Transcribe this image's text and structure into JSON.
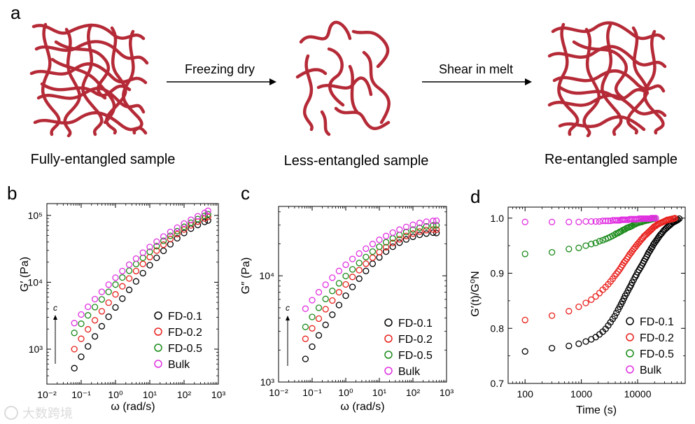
{
  "panel_a": {
    "letter": "a",
    "arrow1_label": "Freezing dry",
    "arrow2_label": "Shear in melt",
    "captions": [
      "Fully-entangled sample",
      "Less-entangled sample",
      "Re-entangled sample"
    ]
  },
  "panels": [
    {
      "letter": "b",
      "ylabel": "G′ (Pa)",
      "xlabel": "ω (rad/s)",
      "c_label": "c"
    },
    {
      "letter": "c",
      "ylabel": "G″ (Pa)",
      "xlabel": "ω (rad/s)",
      "c_label": "c"
    },
    {
      "letter": "d",
      "ylabel": "G′(t)/G⁰N",
      "xlabel": "Time (s)"
    }
  ],
  "watermark": "大数跨境",
  "colors": {
    "FD-0.1": "#000000",
    "FD-0.2": "#e8201c",
    "FD-0.5": "#1a8a1a",
    "Bulk": "#e030e0",
    "chains": "#b52a37"
  },
  "chart_data": [
    {
      "type": "scatter",
      "xscale": "log",
      "yscale": "log",
      "xlim": [
        0.01,
        1000
      ],
      "ylim": [
        300,
        150000
      ],
      "xticks": [
        "10⁻²",
        "10⁻¹",
        "10⁰",
        "10¹",
        "10²",
        "10³"
      ],
      "yticks": [
        "10³",
        "10⁴",
        "10⁵"
      ],
      "legend_position": "bottom-right",
      "x": [
        0.063,
        0.1,
        0.158,
        0.251,
        0.398,
        0.631,
        1.0,
        1.585,
        2.512,
        3.981,
        6.31,
        10.0,
        15.85,
        25.12,
        39.81,
        63.1,
        100,
        158.5,
        251.2,
        398.1,
        500
      ],
      "series": [
        {
          "name": "FD-0.1",
          "values": [
            520,
            770,
            1100,
            1550,
            2200,
            3050,
            4200,
            5700,
            7700,
            10300,
            13700,
            18000,
            23200,
            29500,
            37000,
            45500,
            54500,
            63500,
            72000,
            80000,
            84000
          ]
        },
        {
          "name": "FD-0.2",
          "values": [
            1000,
            1430,
            1980,
            2700,
            3680,
            4950,
            6600,
            8700,
            11400,
            14700,
            18800,
            23800,
            29700,
            36500,
            44200,
            52500,
            61500,
            71000,
            80500,
            90000,
            95000
          ]
        },
        {
          "name": "FD-0.5",
          "values": [
            1750,
            2400,
            3200,
            4250,
            5550,
            7200,
            9250,
            11800,
            14900,
            18700,
            23200,
            28500,
            34700,
            41700,
            49500,
            58000,
            67500,
            77500,
            88000,
            98500,
            104000
          ]
        },
        {
          "name": "Bulk",
          "values": [
            2450,
            3300,
            4300,
            5600,
            7200,
            9200,
            11700,
            14700,
            18300,
            22600,
            27700,
            33700,
            40500,
            48200,
            56500,
            65500,
            75500,
            86000,
            97000,
            109000,
            117000
          ]
        }
      ]
    },
    {
      "type": "scatter",
      "xscale": "log",
      "yscale": "log",
      "xlim": [
        0.01,
        1000
      ],
      "ylim": [
        1000,
        45000
      ],
      "xticks": [
        "10⁻²",
        "10⁻¹",
        "10⁰",
        "10¹",
        "10²",
        "10³"
      ],
      "yticks": [
        "10³",
        "10⁴"
      ],
      "legend_position": "bottom-right",
      "x": [
        0.063,
        0.1,
        0.158,
        0.251,
        0.398,
        0.631,
        1.0,
        1.585,
        2.512,
        3.981,
        6.31,
        10.0,
        15.85,
        25.12,
        39.81,
        63.1,
        100,
        158.5,
        251.2,
        398.1,
        500
      ],
      "series": [
        {
          "name": "FD-0.1",
          "values": [
            1650,
            2150,
            2750,
            3450,
            4300,
            5300,
            6500,
            7850,
            9400,
            11100,
            13000,
            14900,
            16900,
            18800,
            20500,
            22000,
            23300,
            24300,
            25000,
            25500,
            25300
          ]
        },
        {
          "name": "FD-0.2",
          "values": [
            2550,
            3200,
            3950,
            4850,
            5850,
            7000,
            8300,
            9750,
            11300,
            13000,
            14800,
            16700,
            18600,
            20400,
            22100,
            23700,
            25000,
            26100,
            26900,
            27300,
            27200
          ]
        },
        {
          "name": "FD-0.5",
          "values": [
            3300,
            4100,
            5000,
            6050,
            7200,
            8500,
            9950,
            11500,
            13200,
            15000,
            16900,
            18800,
            20700,
            22500,
            24200,
            25800,
            27200,
            28300,
            29200,
            29800,
            29900
          ]
        },
        {
          "name": "Bulk",
          "values": [
            4900,
            5900,
            7000,
            8250,
            9600,
            11100,
            12700,
            14400,
            16200,
            18000,
            19900,
            21800,
            23700,
            25500,
            27200,
            28800,
            30200,
            31400,
            32300,
            32900,
            33000
          ]
        }
      ]
    },
    {
      "type": "scatter",
      "xscale": "log",
      "yscale": "linear",
      "xlim": [
        50,
        70000
      ],
      "ylim": [
        0.7,
        1.02
      ],
      "xticks": [
        "100",
        "1000",
        "10000"
      ],
      "yticks": [
        "0.7",
        "0.8",
        "0.9",
        "1.0"
      ],
      "legend_position": "bottom-right",
      "series": [
        {
          "name": "FD-0.1",
          "times": [
            100,
            300,
            600,
            900,
            1200,
            1500,
            1800,
            2100,
            2400,
            2700,
            3000,
            3300,
            3600,
            3900,
            4200,
            4500,
            4800,
            5100,
            5400,
            5700,
            6000,
            6400,
            6800,
            7200,
            7600,
            8000,
            8500,
            9000,
            9500,
            10000,
            10600,
            11200,
            11800,
            12400,
            13000,
            13700,
            14400,
            15100,
            15800,
            16600,
            17400,
            18200,
            19100,
            20000,
            21000,
            22000,
            23100,
            24200,
            25400,
            26600,
            28000,
            29500,
            31000,
            32500,
            34000,
            36000,
            38000,
            40000,
            42000,
            44000,
            46000,
            48000,
            50000,
            52000,
            55000
          ],
          "values": [
            0.758,
            0.764,
            0.768,
            0.772,
            0.776,
            0.78,
            0.784,
            0.789,
            0.794,
            0.799,
            0.805,
            0.811,
            0.817,
            0.822,
            0.828,
            0.834,
            0.839,
            0.844,
            0.849,
            0.854,
            0.859,
            0.864,
            0.869,
            0.874,
            0.878,
            0.883,
            0.888,
            0.893,
            0.897,
            0.902,
            0.906,
            0.91,
            0.914,
            0.918,
            0.922,
            0.926,
            0.93,
            0.934,
            0.938,
            0.941,
            0.945,
            0.948,
            0.952,
            0.955,
            0.958,
            0.961,
            0.964,
            0.967,
            0.97,
            0.972,
            0.975,
            0.978,
            0.98,
            0.982,
            0.984,
            0.986,
            0.988,
            0.99,
            0.992,
            0.993,
            0.994,
            0.995,
            0.996,
            0.997,
            0.999
          ]
        },
        {
          "name": "FD-0.2",
          "times": [
            100,
            300,
            600,
            900,
            1200,
            1500,
            1800,
            2100,
            2400,
            2700,
            3000,
            3300,
            3600,
            3900,
            4200,
            4500,
            4800,
            5100,
            5400,
            5700,
            6000,
            6400,
            6800,
            7200,
            7600,
            8000,
            8500,
            9000,
            9500,
            10000,
            10600,
            11200,
            11800,
            12400,
            13000,
            13700,
            14400,
            15100,
            15800,
            16600,
            17400,
            18200,
            19100,
            20000,
            21000,
            22000,
            23100,
            24200,
            25400,
            26600,
            28000,
            29500,
            31000,
            32500,
            34000,
            36000,
            38000,
            40000,
            42000,
            44000,
            46000
          ],
          "values": [
            0.815,
            0.823,
            0.831,
            0.839,
            0.846,
            0.852,
            0.858,
            0.864,
            0.87,
            0.875,
            0.88,
            0.885,
            0.89,
            0.895,
            0.899,
            0.903,
            0.907,
            0.911,
            0.915,
            0.919,
            0.922,
            0.926,
            0.93,
            0.934,
            0.937,
            0.94,
            0.944,
            0.947,
            0.95,
            0.953,
            0.956,
            0.959,
            0.962,
            0.964,
            0.967,
            0.969,
            0.971,
            0.973,
            0.975,
            0.977,
            0.979,
            0.981,
            0.983,
            0.985,
            0.986,
            0.988,
            0.989,
            0.99,
            0.991,
            0.992,
            0.993,
            0.994,
            0.995,
            0.996,
            0.997,
            0.997,
            0.998,
            0.998,
            0.999,
            0.999,
            1.0
          ]
        },
        {
          "name": "FD-0.5",
          "times": [
            100,
            300,
            600,
            900,
            1200,
            1500,
            1800,
            2100,
            2400,
            2700,
            3000,
            3300,
            3600,
            3900,
            4200,
            4500,
            4800,
            5100,
            5400,
            5700,
            6000,
            6400,
            6800,
            7200,
            7600,
            8000,
            8500,
            9000,
            9500,
            10000,
            10600,
            11200,
            11800,
            12400,
            13000,
            13700,
            14400,
            15100,
            15800,
            16600,
            17400,
            18200,
            19100,
            20000
          ],
          "values": [
            0.935,
            0.938,
            0.944,
            0.946,
            0.95,
            0.953,
            0.955,
            0.958,
            0.96,
            0.962,
            0.964,
            0.966,
            0.968,
            0.97,
            0.972,
            0.973,
            0.975,
            0.976,
            0.978,
            0.979,
            0.98,
            0.982,
            0.983,
            0.984,
            0.985,
            0.986,
            0.988,
            0.989,
            0.99,
            0.991,
            0.992,
            0.993,
            0.993,
            0.994,
            0.995,
            0.995,
            0.996,
            0.996,
            0.997,
            0.997,
            0.998,
            0.998,
            0.999,
            0.999
          ]
        },
        {
          "name": "Bulk",
          "times": [
            100,
            300,
            600,
            900,
            1200,
            1500,
            1800,
            2100,
            2400,
            2700,
            3000,
            3300,
            3600,
            3900,
            4200,
            4500,
            4800,
            5100,
            5400,
            5700,
            6000,
            6400,
            6800,
            7200,
            7600,
            8000,
            8500,
            9000,
            9500,
            10000,
            10600,
            11200,
            11800,
            12400,
            13000,
            13700,
            14400,
            15100,
            15800,
            16600,
            17400,
            18200,
            19100,
            20000,
            21000
          ],
          "values": [
            0.993,
            0.993,
            0.993,
            0.993,
            0.994,
            0.994,
            0.994,
            0.994,
            0.995,
            0.995,
            0.995,
            0.995,
            0.996,
            0.996,
            0.996,
            0.996,
            0.996,
            0.997,
            0.997,
            0.997,
            0.997,
            0.997,
            0.997,
            0.998,
            0.998,
            0.998,
            0.998,
            0.998,
            0.998,
            0.998,
            0.999,
            0.999,
            0.999,
            0.999,
            0.999,
            0.999,
            0.999,
            0.999,
            0.999,
            0.999,
            1.0,
            1.0,
            1.0,
            1.0,
            1.0
          ]
        }
      ]
    }
  ]
}
